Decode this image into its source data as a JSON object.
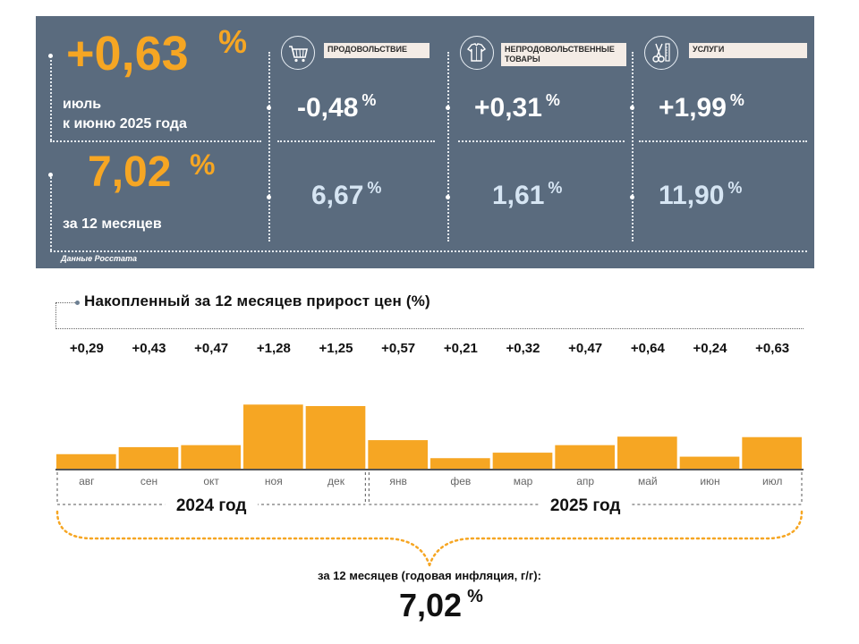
{
  "summary": {
    "monthly_value": "+0,63",
    "monthly_pct": "%",
    "monthly_caption_1": "июль",
    "monthly_caption_2": "к июню 2025 года",
    "annual_value": "7,02",
    "annual_pct": "%",
    "annual_caption": "за 12 месяцев",
    "source": "Данные Росстата"
  },
  "categories": [
    {
      "label": "ПРОДОВОЛЬСТВИЕ",
      "icon": "shopping-cart-icon",
      "monthly": "-0,48",
      "annual": "6,67",
      "pct": "%"
    },
    {
      "label": "НЕПРОДОВОЛЬСТВЕННЫЕ ТОВАРЫ",
      "icon": "clothing-icon",
      "monthly": "+0,31",
      "annual": "1,61",
      "pct": "%"
    },
    {
      "label": "УСЛУГИ",
      "icon": "scissors-comb-icon",
      "monthly": "+1,99",
      "annual": "11,90",
      "pct": "%"
    }
  ],
  "colors": {
    "panel_bg": "#5a6b7e",
    "accent": "#f6a623",
    "bar": "#f6a623",
    "annual_text": "#d6e5f3"
  },
  "chart_data": {
    "type": "bar",
    "title": "Накопленный за 12 месяцев прирост цен (%)",
    "categories": [
      "авг",
      "сен",
      "окт",
      "ноя",
      "дек",
      "янв",
      "фев",
      "мар",
      "апр",
      "май",
      "июн",
      "июл"
    ],
    "values": [
      0.29,
      0.43,
      0.47,
      1.28,
      1.25,
      0.57,
      0.21,
      0.32,
      0.47,
      0.64,
      0.24,
      0.63
    ],
    "value_labels": [
      "+0,29",
      "+0,43",
      "+0,47",
      "+1,28",
      "+1,25",
      "+0,57",
      "+0,21",
      "+0,32",
      "+0,47",
      "+0,64",
      "+0,24",
      "+0,63"
    ],
    "year_groups": [
      {
        "label": "2024 год",
        "months": 5
      },
      {
        "label": "2025 год",
        "months": 7
      }
    ],
    "total_caption": "за 12 месяцев (годовая инфляция, г/г):",
    "total_value": "7,02",
    "total_pct": "%"
  }
}
